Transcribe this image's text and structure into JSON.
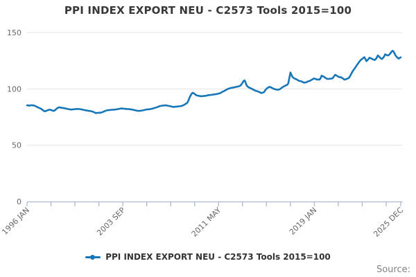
{
  "title": "PPI INDEX EXPORT NEU - C2573 Tools 2015=100",
  "legend": {
    "label": "PPI INDEX EXPORT NEU - C2573 Tools 2015=100"
  },
  "source": {
    "label": "Source:"
  },
  "colors": {
    "line": "#1676b8",
    "grid": "#e3e3e3",
    "axis": "#aab9ce",
    "tick_text": "#666666",
    "title_text": "#383838",
    "legend_text": "#333333",
    "source_text": "#808080"
  },
  "chart_data": {
    "type": "line",
    "title": "PPI INDEX EXPORT NEU - C2573 Tools 2015=100",
    "legend_position": "bottom",
    "grid": "horizontal",
    "y_axis": {
      "ticks": [
        0,
        50,
        100,
        150
      ],
      "range": [
        0,
        150
      ]
    },
    "x_axis": {
      "start_label": "1996 JAN",
      "end_label": "2025 DEC",
      "tick_labels": [
        {
          "text": "1996 JAN",
          "month": 0
        },
        {
          "text": "2003 SEP",
          "month": 92
        },
        {
          "text": "2011 MAY",
          "month": 184
        },
        {
          "text": "2019 JAN",
          "month": 276
        },
        {
          "text": "2025 DEC",
          "month": 359
        }
      ],
      "minor_tick_months": [
        0,
        23,
        46,
        69,
        92,
        115,
        138,
        161,
        184,
        207,
        230,
        253,
        276,
        299,
        322,
        345,
        359
      ]
    },
    "series": [
      {
        "name": "PPI INDEX EXPORT NEU - C2573 Tools 2015=100",
        "start": "1996 JAN",
        "end": "2025 DEC",
        "values": [
          85.3,
          85.4,
          85.1,
          85.3,
          85.5,
          85.3,
          85.4,
          85.1,
          84.7,
          84.2,
          83.8,
          83.3,
          82.9,
          82.6,
          82.0,
          81.2,
          80.6,
          80.1,
          80.3,
          80.7,
          81.1,
          81.4,
          81.6,
          81.2,
          80.9,
          80.6,
          80.5,
          81.2,
          82.0,
          82.8,
          83.4,
          83.6,
          83.4,
          83.2,
          83.1,
          83.0,
          82.8,
          82.6,
          82.4,
          82.2,
          82.0,
          81.8,
          81.6,
          81.7,
          81.8,
          81.9,
          82.0,
          82.1,
          82.2,
          82.2,
          82.1,
          82.0,
          81.8,
          81.6,
          81.4,
          81.2,
          81.0,
          80.9,
          80.7,
          80.5,
          80.4,
          80.2,
          80.1,
          79.8,
          79.4,
          79.0,
          78.5,
          78.6,
          78.7,
          78.8,
          78.8,
          78.9,
          79.2,
          79.6,
          80.0,
          80.4,
          80.7,
          81.0,
          81.1,
          81.2,
          81.3,
          81.4,
          81.5,
          81.5,
          81.6,
          81.7,
          81.8,
          82.0,
          82.2,
          82.4,
          82.5,
          82.6,
          82.5,
          82.4,
          82.3,
          82.2,
          82.2,
          82.1,
          82.0,
          81.9,
          81.8,
          81.6,
          81.4,
          81.2,
          81.0,
          80.8,
          80.6,
          80.5,
          80.5,
          80.6,
          80.7,
          80.9,
          81.1,
          81.3,
          81.6,
          81.7,
          81.8,
          81.9,
          82.0,
          82.2,
          82.4,
          82.6,
          82.9,
          83.2,
          83.5,
          83.8,
          84.1,
          84.6,
          84.8,
          85.0,
          85.1,
          85.2,
          85.3,
          85.3,
          85.3,
          85.1,
          84.9,
          84.7,
          84.5,
          84.3,
          84.1,
          84.0,
          84.1,
          84.2,
          84.3,
          84.4,
          84.5,
          84.6,
          84.8,
          85.0,
          85.4,
          85.9,
          86.5,
          87.0,
          87.7,
          89.5,
          92.0,
          93.9,
          95.5,
          96.5,
          96.2,
          95.5,
          94.8,
          94.2,
          94.0,
          93.8,
          93.6,
          93.5,
          93.5,
          93.6,
          93.7,
          93.8,
          93.9,
          94.1,
          94.5,
          94.4,
          94.6,
          94.7,
          94.8,
          95.0,
          95.1,
          95.2,
          95.4,
          95.6,
          95.8,
          96.1,
          96.4,
          97.0,
          97.5,
          98.0,
          98.5,
          99.0,
          99.5,
          100.0,
          100.3,
          100.6,
          100.8,
          101.0,
          101.2,
          101.4,
          101.6,
          101.8,
          102.0,
          102.2,
          102.5,
          103.0,
          104.0,
          105.5,
          107.0,
          107.5,
          105.5,
          103.0,
          102.0,
          101.3,
          100.8,
          100.5,
          100.0,
          99.5,
          99.0,
          98.6,
          98.2,
          98.0,
          97.6,
          97.2,
          96.8,
          96.3,
          96.5,
          96.8,
          97.5,
          99.0,
          100.0,
          100.8,
          101.4,
          101.8,
          101.5,
          101.0,
          100.5,
          100.0,
          99.8,
          99.5,
          99.3,
          99.2,
          99.4,
          99.8,
          100.5,
          101.2,
          101.8,
          102.3,
          102.8,
          103.2,
          103.6,
          105.0,
          110.0,
          114.5,
          112.5,
          110.5,
          109.8,
          109.2,
          108.8,
          108.3,
          107.8,
          107.2,
          107.0,
          106.8,
          106.5,
          106.0,
          105.5,
          105.6,
          105.8,
          106.2,
          106.6,
          107.0,
          107.2,
          107.8,
          108.4,
          109.0,
          109.2,
          108.8,
          108.5,
          108.2,
          108.4,
          108.2,
          109.5,
          111.7,
          111.2,
          110.9,
          110.2,
          109.5,
          109.0,
          108.8,
          108.9,
          109.0,
          109.1,
          109.2,
          110.0,
          111.2,
          112.5,
          112.0,
          111.4,
          110.9,
          110.5,
          110.3,
          110.2,
          109.5,
          108.8,
          108.2,
          108.4,
          108.8,
          109.2,
          109.6,
          110.8,
          112.5,
          114.3,
          115.8,
          117.2,
          118.4,
          119.8,
          121.2,
          122.5,
          123.8,
          125.0,
          126.0,
          126.6,
          127.4,
          128.1,
          126.5,
          124.6,
          125.5,
          126.6,
          127.7,
          127.2,
          126.8,
          126.3,
          126.0,
          125.6,
          126.5,
          127.8,
          129.7,
          128.8,
          127.8,
          127.0,
          126.6,
          127.5,
          128.8,
          130.7,
          130.2,
          129.8,
          129.7,
          130.5,
          131.5,
          132.8,
          133.8,
          133.2,
          131.5,
          129.7,
          128.5,
          127.6,
          126.8,
          127.5,
          128.0
        ]
      }
    ]
  }
}
